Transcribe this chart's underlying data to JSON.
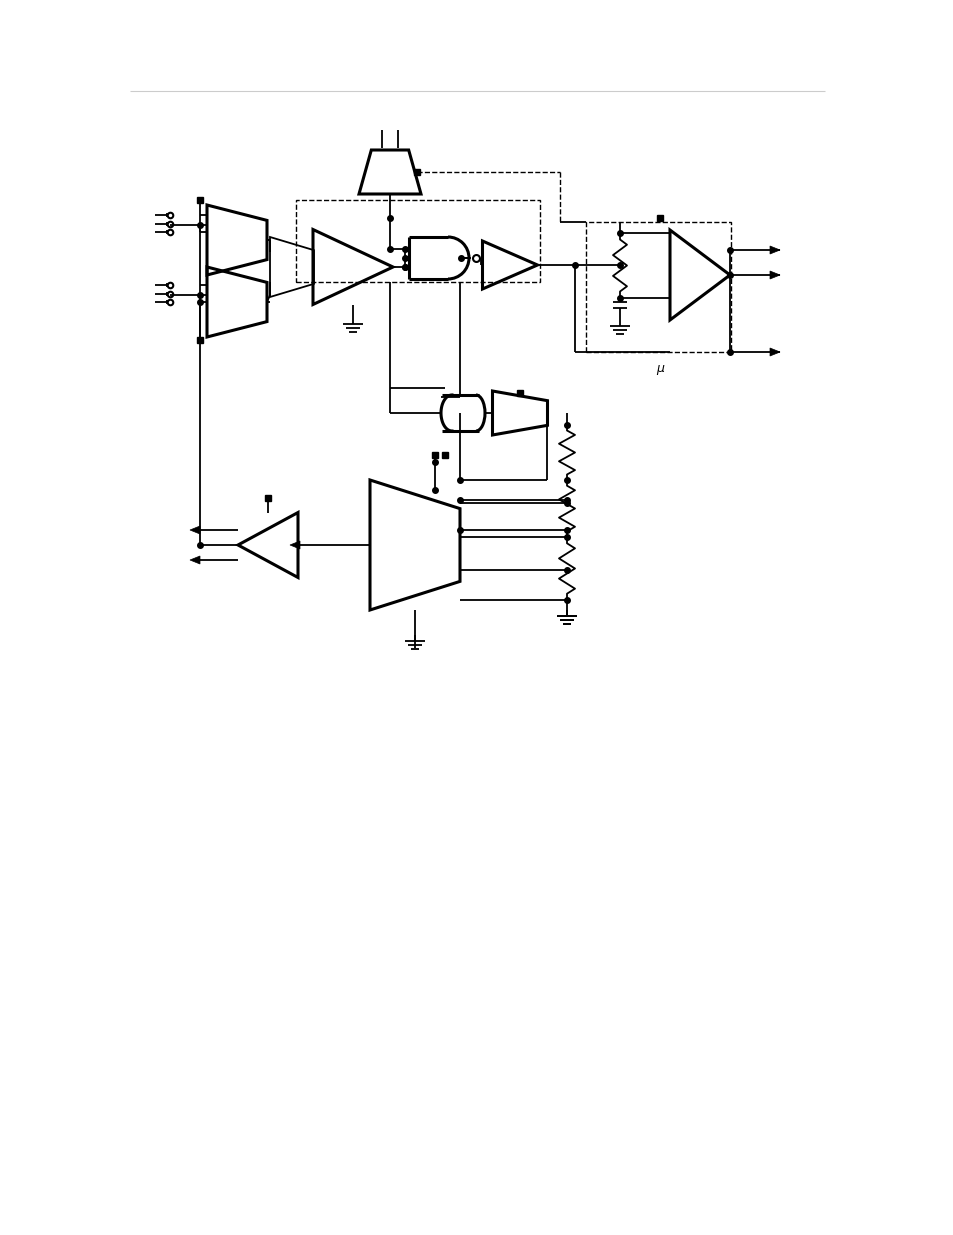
{
  "bg_color": "#ffffff",
  "line_color": "#000000",
  "lw": 1.3,
  "blw": 2.2,
  "fig_width": 9.54,
  "fig_height": 12.35,
  "mu_label": "μ"
}
